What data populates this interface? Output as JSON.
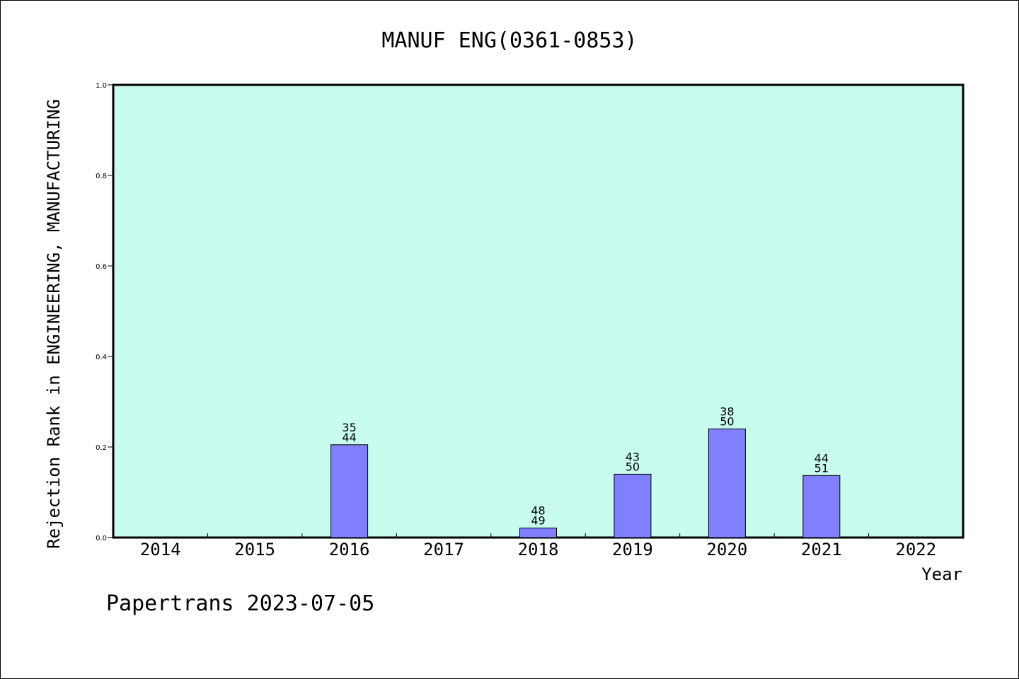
{
  "chart_data": {
    "type": "bar",
    "title": "MANUF ENG(0361-0853)",
    "ylabel": "Rejection Rank in ENGINEERING, MANUFACTURING",
    "xlabel": "Year",
    "ylim": [
      0,
      1.0
    ],
    "yticks": [
      "0.0",
      "0.2",
      "0.4",
      "0.6",
      "0.8",
      "1.0"
    ],
    "categories": [
      "2014",
      "2015",
      "2016",
      "2017",
      "2018",
      "2019",
      "2020",
      "2021",
      "2022"
    ],
    "values": [
      0,
      0,
      0.205,
      0,
      0.021,
      0.14,
      0.24,
      0.137,
      0
    ],
    "bar_labels": [
      null,
      null,
      {
        "top": "35",
        "bottom": "44"
      },
      null,
      {
        "top": "48",
        "bottom": "49"
      },
      {
        "top": "43",
        "bottom": "50"
      },
      {
        "top": "38",
        "bottom": "50"
      },
      {
        "top": "44",
        "bottom": "51"
      },
      null
    ],
    "grid": false,
    "plot_background": "#c8fcee",
    "bar_color": "#8080ff"
  },
  "footer": "Papertrans 2023-07-05"
}
